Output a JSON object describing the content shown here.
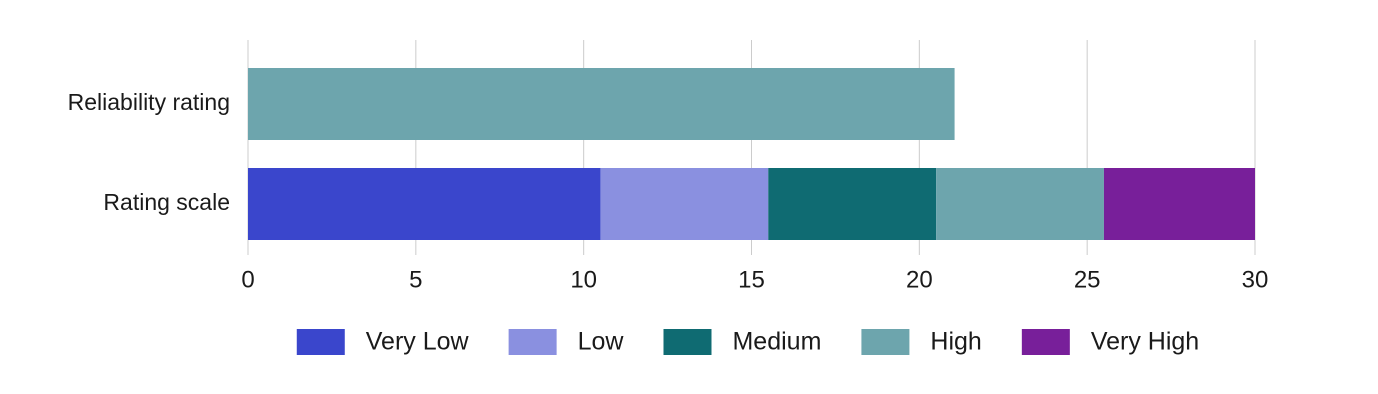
{
  "chart_data": {
    "type": "stacked-barh",
    "categories": [
      "Reliability rating",
      "Rating scale"
    ],
    "series": [
      {
        "name": "Very Low",
        "color": "#3a46cc",
        "values": [
          null,
          10.5
        ]
      },
      {
        "name": "Low",
        "color": "#8a90e0",
        "values": [
          null,
          5
        ]
      },
      {
        "name": "Medium",
        "color": "#0f6b72",
        "values": [
          null,
          5
        ]
      },
      {
        "name": "High",
        "color": "#6da5ad",
        "values": [
          21.05,
          5
        ]
      },
      {
        "name": "Very High",
        "color": "#781f9a",
        "values": [
          null,
          4.5
        ]
      }
    ],
    "xlim": [
      0,
      30
    ],
    "xticks": [
      0,
      5,
      10,
      15,
      20,
      25,
      30
    ],
    "grid": true,
    "legend": "bottom"
  }
}
